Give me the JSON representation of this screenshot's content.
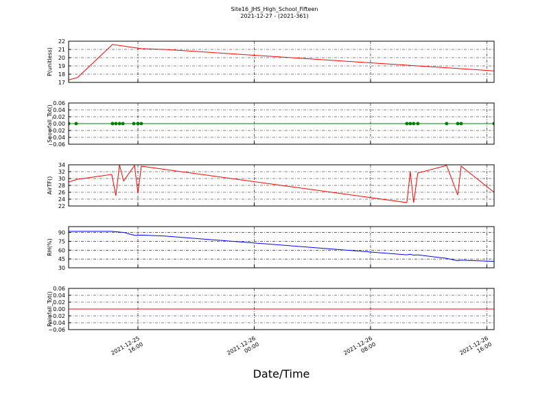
{
  "figure": {
    "title": "Site16_JHS_High_School_Fifteen",
    "subtitle": "2021-12-27 - (2021-361)",
    "xlabel": "Date/Time",
    "xlim": [
      "2021-12-25 11:14",
      "2021-12-26 16:30"
    ],
    "xticks": [
      {
        "value": "2021-12-25 16:00",
        "label": "2021-12-25\n16:00"
      },
      {
        "value": "2021-12-26 00:00",
        "label": "2021-12-26\n00:00"
      },
      {
        "value": "2021-12-26 08:00",
        "label": "2021-12-26\n08:00"
      },
      {
        "value": "2021-12-26 16:00",
        "label": "2021-12-26\n16:00"
      }
    ]
  },
  "chart_data": [
    {
      "type": "line",
      "ylabel": "P(unitless)",
      "color": "#ff0000",
      "marker": false,
      "x": [
        "2021-12-25 11:14",
        "2021-12-25 11:51",
        "2021-12-25 14:15",
        "2021-12-25 16:11",
        "2021-12-25 17:50",
        "2021-12-26 16:30"
      ],
      "values": [
        17.3,
        17.6,
        21.6,
        21.1,
        21.0,
        18.4
      ],
      "ylim": [
        17,
        22
      ],
      "yticks": [
        17,
        18,
        19,
        20,
        21,
        22
      ],
      "grid": true
    },
    {
      "type": "line",
      "ylabel": "Snowfall_Tot()",
      "color": "#008000",
      "marker": true,
      "x": [
        "2021-12-25 11:14",
        "2021-12-25 11:45",
        "2021-12-25 14:15",
        "2021-12-25 14:29",
        "2021-12-25 14:44",
        "2021-12-25 14:58",
        "2021-12-25 15:43",
        "2021-12-25 16:00",
        "2021-12-25 16:14",
        "2021-12-26 10:30",
        "2021-12-26 10:44",
        "2021-12-26 10:58",
        "2021-12-26 11:15",
        "2021-12-26 13:14",
        "2021-12-26 14:00",
        "2021-12-26 14:14",
        "2021-12-26 16:30"
      ],
      "values": [
        0,
        0,
        0,
        0,
        0,
        0,
        0,
        0,
        0,
        0,
        0,
        0,
        0,
        0,
        0,
        0,
        0
      ],
      "ylim": [
        -0.06,
        0.06
      ],
      "yticks": [
        {
          "value": -0.06,
          "label": "−0.06"
        },
        {
          "value": -0.04,
          "label": "−0.04"
        },
        {
          "value": -0.02,
          "label": "−0.02"
        },
        {
          "value": 0,
          "label": "0.00"
        },
        {
          "value": 0.02,
          "label": "0.02"
        },
        {
          "value": 0.04,
          "label": "0.04"
        },
        {
          "value": 0.06,
          "label": "0.06"
        }
      ],
      "grid": true
    },
    {
      "type": "line",
      "ylabel": "AirTF()",
      "color": "#ff0000",
      "marker": false,
      "x": [
        "2021-12-25 11:14",
        "2021-12-25 11:51",
        "2021-12-25 12:13",
        "2021-12-25 14:12",
        "2021-12-25 14:29",
        "2021-12-25 14:44",
        "2021-12-25 15:01",
        "2021-12-25 15:46",
        "2021-12-25 16:00",
        "2021-12-25 16:14",
        "2021-12-26 10:30",
        "2021-12-26 10:44",
        "2021-12-26 10:58",
        "2021-12-26 11:15",
        "2021-12-26 13:14",
        "2021-12-26 14:00",
        "2021-12-26 14:14",
        "2021-12-26 16:30"
      ],
      "values": [
        29,
        29.8,
        30,
        31.2,
        25,
        34,
        29.3,
        33.8,
        25.8,
        33.6,
        23,
        32,
        23,
        31.6,
        33.8,
        25.2,
        33.6,
        26
      ],
      "ylim": [
        22,
        34
      ],
      "yticks": [
        22,
        24,
        26,
        28,
        30,
        32,
        34
      ],
      "grid": true
    },
    {
      "type": "line",
      "ylabel": "RH(%)",
      "color": "#0000ff",
      "marker": false,
      "x": [
        "2021-12-25 11:14",
        "2021-12-25 14:12",
        "2021-12-25 15:03",
        "2021-12-25 15:29",
        "2021-12-25 15:49",
        "2021-12-25 16:14",
        "2021-12-25 17:50",
        "2021-12-26 10:30",
        "2021-12-26 10:44",
        "2021-12-26 10:58",
        "2021-12-26 11:15",
        "2021-12-26 13:14",
        "2021-12-26 14:00",
        "2021-12-26 14:14",
        "2021-12-26 16:30"
      ],
      "values": [
        92,
        92,
        90,
        87,
        85,
        85.5,
        84,
        52,
        53,
        51.5,
        52,
        46,
        42,
        43,
        41
      ],
      "ylim": [
        30,
        100
      ],
      "yticks": [
        30,
        45,
        60,
        75,
        90
      ],
      "grid": true
    },
    {
      "type": "line",
      "ylabel": "Rainfall_Tot()",
      "color": "#ff0000",
      "marker": false,
      "x": [
        "2021-12-25 11:14",
        "2021-12-26 16:30"
      ],
      "values": [
        0,
        0
      ],
      "ylim": [
        -0.06,
        0.06
      ],
      "yticks": [
        {
          "value": -0.06,
          "label": "−0.06"
        },
        {
          "value": -0.04,
          "label": "−0.04"
        },
        {
          "value": -0.02,
          "label": "−0.02"
        },
        {
          "value": 0,
          "label": "0.00"
        },
        {
          "value": 0.02,
          "label": "0.02"
        },
        {
          "value": 0.04,
          "label": "0.04"
        },
        {
          "value": 0.06,
          "label": "0.06"
        }
      ],
      "grid": true
    }
  ]
}
